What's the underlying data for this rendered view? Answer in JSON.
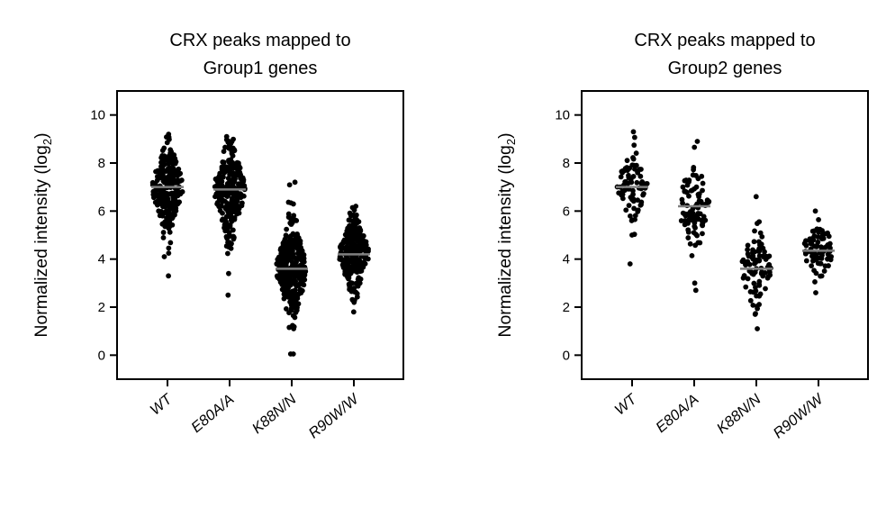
{
  "chart_data": [
    {
      "type": "scatter",
      "subtype": "strip",
      "title": [
        "CRX peaks mapped to",
        "Group1 genes"
      ],
      "ylabel": "Normalized intensity (log",
      "ylabel_sub": "2",
      "ylabel_close": ")",
      "categories": [
        "WT",
        "E80A/A",
        "K88N/N",
        "R90W/W"
      ],
      "ylim": [
        -1,
        11
      ],
      "yticks": [
        0,
        2,
        4,
        6,
        8,
        10
      ],
      "medians": [
        7.0,
        6.9,
        3.6,
        4.2
      ],
      "point_color": "#000000",
      "median_color": "#7f7f7f",
      "series": [
        {
          "category": "WT",
          "n": 260,
          "min": 4.1,
          "max": 9.2,
          "sd": 0.9,
          "outliers": [
            3.3
          ]
        },
        {
          "category": "E80A/A",
          "n": 260,
          "min": 3.4,
          "max": 9.1,
          "sd": 0.95,
          "outliers": [
            2.5
          ]
        },
        {
          "category": "K88N/N",
          "n": 300,
          "min": 1.1,
          "max": 7.2,
          "sd": 1.0,
          "outliers": [
            0.05,
            0.05
          ]
        },
        {
          "category": "R90W/W",
          "n": 260,
          "min": 2.2,
          "max": 6.2,
          "sd": 0.75,
          "outliers": [
            1.8
          ]
        }
      ]
    },
    {
      "type": "scatter",
      "subtype": "strip",
      "title": [
        "CRX peaks mapped to",
        "Group2 genes"
      ],
      "ylabel": "Normalized intensity (log",
      "ylabel_sub": "2",
      "ylabel_close": ")",
      "categories": [
        "WT",
        "E80A/A",
        "K88N/N",
        "R90W/W"
      ],
      "ylim": [
        -1,
        11
      ],
      "yticks": [
        0,
        2,
        4,
        6,
        8,
        10
      ],
      "medians": [
        7.0,
        6.2,
        3.6,
        4.35
      ],
      "point_color": "#000000",
      "median_color": "#7f7f7f",
      "series": [
        {
          "category": "WT",
          "n": 80,
          "min": 5.0,
          "max": 9.3,
          "sd": 0.75,
          "outliers": [
            3.8
          ]
        },
        {
          "category": "E80A/A",
          "n": 90,
          "min": 3.0,
          "max": 8.9,
          "sd": 1.0,
          "outliers": [
            2.7
          ]
        },
        {
          "category": "K88N/N",
          "n": 90,
          "min": 1.7,
          "max": 6.6,
          "sd": 0.85,
          "outliers": [
            1.1
          ]
        },
        {
          "category": "R90W/W",
          "n": 80,
          "min": 2.6,
          "max": 6.0,
          "sd": 0.65,
          "outliers": []
        }
      ]
    }
  ]
}
